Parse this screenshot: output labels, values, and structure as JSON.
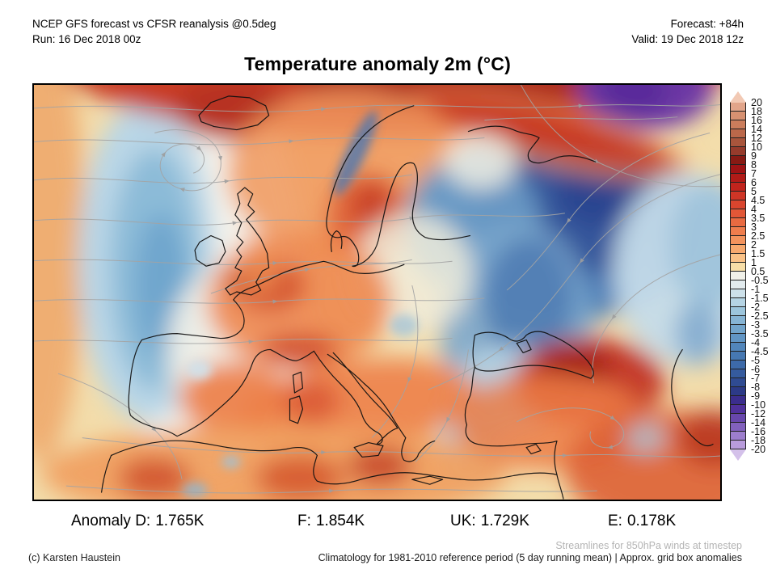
{
  "header": {
    "model_line": "NCEP GFS forecast vs CFSR reanalysis @0.5deg",
    "run_line": "Run: 16 Dec 2018 00z",
    "forecast_line": "Forecast: +84h",
    "valid_line": "Valid: 19 Dec 2018 12z"
  },
  "title": "Temperature anomaly 2m (°C)",
  "colorbar": {
    "unit": "°C",
    "labels": [
      "20",
      "18",
      "16",
      "14",
      "12",
      "10",
      "9",
      "8",
      "7",
      "6",
      "5",
      "4.5",
      "4",
      "3.5",
      "3",
      "2.5",
      "2",
      "1.5",
      "1",
      "0.5",
      "-0.5",
      "-1",
      "-1.5",
      "-2",
      "-2.5",
      "-3",
      "-3.5",
      "-4",
      "-4.5",
      "-5",
      "-6",
      "-7",
      "-8",
      "-9",
      "-10",
      "-12",
      "-14",
      "-16",
      "-18",
      "-20"
    ],
    "cells": [
      "#f2c9b4",
      "#e2a58a",
      "#d79171",
      "#cb7d5c",
      "#bb684a",
      "#a9553c",
      "#963b2c",
      "#871a14",
      "#9e1315",
      "#b11b18",
      "#c1241d",
      "#cf3526",
      "#da452e",
      "#e25737",
      "#e96a41",
      "#ef7d4d",
      "#f3935d",
      "#f7a96e",
      "#fac287",
      "#f8dfa8",
      "#f1f1e9",
      "#e2ebee",
      "#cde1ea",
      "#b5d4e4",
      "#9cc5dc",
      "#86b4d4",
      "#72a4cb",
      "#6195c4",
      "#5286bb",
      "#4678b2",
      "#3d6aa9",
      "#355b9e",
      "#2f4b92",
      "#2c3a87",
      "#3b2d8d",
      "#50319b",
      "#6847ac",
      "#8261bd",
      "#9d7ecd",
      "#b99cdc",
      "#d4c1ea"
    ]
  },
  "map": {
    "coastline_color": "#111111",
    "streamline_color": "#a4a4a4",
    "background_color": "#f3ddab"
  },
  "footer": {
    "anomaly_stats": [
      {
        "label": "Anomaly D:",
        "value": "1.765K"
      },
      {
        "label": "F:",
        "value": "1.854K"
      },
      {
        "label": "UK:",
        "value": "1.729K"
      },
      {
        "label": "E:",
        "value": "0.178K"
      }
    ],
    "streamline_note": "Streamlines for 850hPa winds at timestep",
    "copyright": "(c) Karsten Haustein",
    "climatology_note": "Climatology for 1981-2010 reference period (5 day running mean) | Approx. grid box anomalies"
  }
}
